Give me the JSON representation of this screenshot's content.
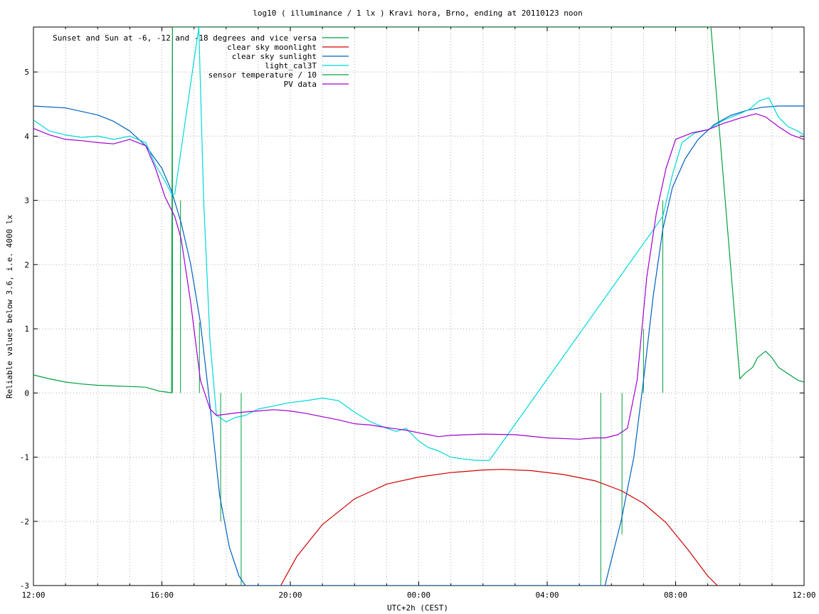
{
  "chart_data": {
    "type": "line",
    "title": "log10 ( illuminance / 1 lx ) Kravi hora, Brno, ending at 20110123 noon",
    "xlabel": "UTC+2h (CEST)",
    "ylabel": "Reliable values below 3.6, i.e. 4000 lx",
    "xlim": [
      0,
      24
    ],
    "ylim": [
      -3,
      5.7
    ],
    "x_unit": "hours since 12:00 local (UTC+2h)",
    "x_ticks": [
      {
        "x": 0,
        "label": "12:00"
      },
      {
        "x": 4,
        "label": "16:00"
      },
      {
        "x": 8,
        "label": "20:00"
      },
      {
        "x": 12,
        "label": "00:00"
      },
      {
        "x": 16,
        "label": "04:00"
      },
      {
        "x": 20,
        "label": "08:00"
      },
      {
        "x": 24,
        "label": "12:00"
      }
    ],
    "y_ticks": [
      {
        "y": -3,
        "label": "-3"
      },
      {
        "y": -2,
        "label": "-2"
      },
      {
        "y": -1,
        "label": "-1"
      },
      {
        "y": 0,
        "label": "0"
      },
      {
        "y": 1,
        "label": "1"
      },
      {
        "y": 2,
        "label": "2"
      },
      {
        "y": 3,
        "label": "3"
      },
      {
        "y": 4,
        "label": "4"
      },
      {
        "y": 5,
        "label": "5"
      }
    ],
    "grid": true,
    "legend_position": "top-left",
    "series": [
      {
        "name": "Sunset and Sun at -6, -12 and -18 degrees and vice versa",
        "color": "#00a040",
        "style": "vertical-lines",
        "markers": [
          {
            "x": 4.33,
            "y0": 0,
            "y1": 5.7
          },
          {
            "x": 4.58,
            "y0": 0,
            "y1": 3.0
          },
          {
            "x": 5.17,
            "y0": 0,
            "y1": 1.1
          },
          {
            "x": 5.83,
            "y0": 0,
            "y1": -2.0
          },
          {
            "x": 6.47,
            "y0": 0,
            "y1": -3.0
          },
          {
            "x": 17.67,
            "y0": 0,
            "y1": -3.0
          },
          {
            "x": 18.33,
            "y0": 0,
            "y1": -2.2
          },
          {
            "x": 19.0,
            "y0": 0,
            "y1": 1.0
          },
          {
            "x": 19.6,
            "y0": 0,
            "y1": 3.0
          }
        ]
      },
      {
        "name": "clear sky moonlight",
        "color": "#d00000",
        "x": [
          7.7,
          8.2,
          9.0,
          10.0,
          11.0,
          12.0,
          13.0,
          14.0,
          14.6,
          15.5,
          16.5,
          17.5,
          18.3,
          19.0,
          19.7,
          20.4,
          21.0,
          21.3
        ],
        "y": [
          -3.0,
          -2.55,
          -2.05,
          -1.65,
          -1.42,
          -1.31,
          -1.24,
          -1.2,
          -1.19,
          -1.21,
          -1.27,
          -1.37,
          -1.52,
          -1.72,
          -2.02,
          -2.45,
          -2.85,
          -3.0
        ]
      },
      {
        "name": "clear sky sunlight",
        "color": "#0060c0",
        "x": [
          0,
          1,
          2,
          2.5,
          3,
          3.5,
          4.0,
          4.3,
          4.6,
          4.9,
          5.2,
          5.5,
          5.8,
          6.1,
          6.4,
          6.6,
          17.8,
          18.3,
          18.7,
          19.0,
          19.3,
          19.6,
          19.9,
          20.3,
          20.7,
          21.2,
          21.7,
          22.2,
          22.7,
          23.2,
          23.6,
          24.0
        ],
        "y": [
          4.47,
          4.44,
          4.33,
          4.23,
          4.08,
          3.85,
          3.5,
          3.15,
          2.65,
          2.0,
          1.1,
          -0.2,
          -1.6,
          -2.4,
          -2.85,
          -3.0,
          -3.0,
          -2.0,
          -1.0,
          0.2,
          1.5,
          2.55,
          3.2,
          3.65,
          3.95,
          4.18,
          4.32,
          4.4,
          4.45,
          4.47,
          4.47,
          4.47
        ]
      },
      {
        "name": "light_cal3T",
        "color": "#00d8d8",
        "x": [
          0,
          0.5,
          1.0,
          1.5,
          2.0,
          2.5,
          3.0,
          3.5,
          3.8,
          4.1,
          4.3,
          4.4,
          5.15,
          5.3,
          5.5,
          5.7,
          6.0,
          6.3,
          6.6,
          7.0,
          7.5,
          8.0,
          8.5,
          9.0,
          9.5,
          10.0,
          10.5,
          11.0,
          11.3,
          11.6,
          12.0,
          12.3,
          12.6,
          13.0,
          13.4,
          13.8,
          14.2,
          19.6,
          19.9,
          20.2,
          20.6,
          21.0,
          21.5,
          22.0,
          22.3,
          22.6,
          22.9,
          23.2,
          23.5,
          23.8,
          24.0
        ],
        "y": [
          4.25,
          4.08,
          4.02,
          3.98,
          4.0,
          3.95,
          4.0,
          3.9,
          3.55,
          3.3,
          3.1,
          3.1,
          5.7,
          3.0,
          0.8,
          -0.35,
          -0.45,
          -0.38,
          -0.35,
          -0.25,
          -0.2,
          -0.15,
          -0.12,
          -0.08,
          -0.12,
          -0.3,
          -0.45,
          -0.55,
          -0.6,
          -0.55,
          -0.75,
          -0.85,
          -0.9,
          -1.0,
          -1.03,
          -1.05,
          -1.05,
          2.75,
          3.4,
          3.9,
          4.05,
          4.1,
          4.25,
          4.35,
          4.42,
          4.55,
          4.6,
          4.3,
          4.15,
          4.08,
          4.02
        ]
      },
      {
        "name": "sensor temperature / 10",
        "color": "#00a040",
        "x": [
          0,
          0.5,
          1.0,
          1.5,
          2.0,
          2.5,
          3.0,
          3.5,
          3.9,
          4.2,
          4.3,
          4.33,
          21.1,
          22.0,
          22.15,
          22.4,
          22.55,
          22.8,
          23.0,
          23.2,
          23.5,
          23.8,
          24.0
        ],
        "y": [
          0.28,
          0.22,
          0.17,
          0.14,
          0.12,
          0.11,
          0.1,
          0.09,
          0.03,
          0.01,
          0.0,
          5.7,
          5.7,
          0.22,
          0.3,
          0.4,
          0.55,
          0.65,
          0.55,
          0.4,
          0.3,
          0.2,
          0.17
        ]
      },
      {
        "name": "PV data",
        "color": "#a000d0",
        "x": [
          0,
          0.5,
          1.0,
          1.5,
          2.0,
          2.5,
          3.0,
          3.5,
          3.8,
          4.1,
          4.4,
          4.6,
          4.9,
          5.2,
          5.5,
          5.7,
          6.0,
          6.5,
          7.0,
          7.5,
          8.0,
          8.5,
          9.0,
          9.5,
          10.0,
          10.5,
          11.0,
          11.3,
          11.6,
          12.0,
          12.3,
          12.6,
          13.0,
          13.5,
          14.0,
          15.0,
          16.0,
          17.0,
          17.5,
          17.8,
          18.2,
          18.5,
          18.8,
          19.1,
          19.4,
          19.7,
          20.0,
          20.5,
          21.0,
          21.5,
          22.0,
          22.5,
          22.8,
          23.2,
          23.6,
          24.0
        ],
        "y": [
          4.12,
          4.02,
          3.95,
          3.93,
          3.9,
          3.88,
          3.95,
          3.85,
          3.5,
          3.05,
          2.75,
          2.4,
          1.4,
          0.2,
          -0.25,
          -0.35,
          -0.33,
          -0.3,
          -0.28,
          -0.26,
          -0.28,
          -0.32,
          -0.37,
          -0.42,
          -0.48,
          -0.5,
          -0.54,
          -0.56,
          -0.58,
          -0.62,
          -0.65,
          -0.68,
          -0.66,
          -0.65,
          -0.64,
          -0.65,
          -0.7,
          -0.72,
          -0.7,
          -0.7,
          -0.65,
          -0.55,
          0.2,
          1.8,
          2.8,
          3.5,
          3.95,
          4.05,
          4.1,
          4.2,
          4.28,
          4.35,
          4.3,
          4.15,
          4.02,
          3.95
        ]
      }
    ]
  }
}
